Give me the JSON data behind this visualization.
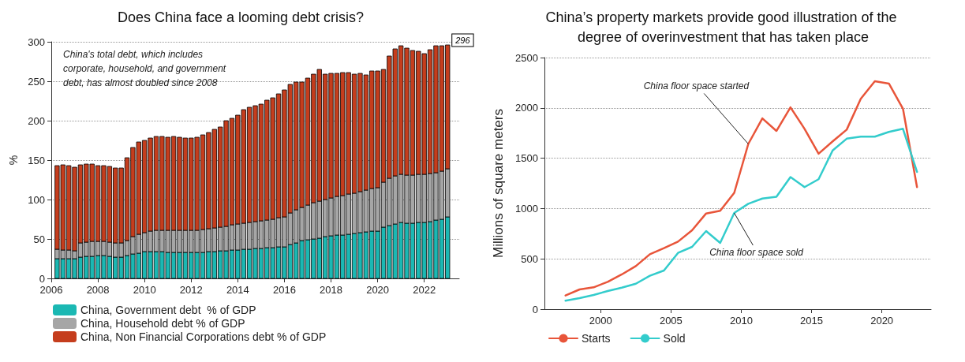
{
  "chart_data": [
    {
      "type": "bar",
      "title": "Does China face a looming debt crisis?",
      "ylabel": "%",
      "stacked": true,
      "legend": "bottom",
      "grid": "y",
      "x": [
        2006.25,
        2006.5,
        2006.75,
        2007,
        2007.25,
        2007.5,
        2007.75,
        2008,
        2008.25,
        2008.5,
        2008.75,
        2009,
        2009.25,
        2009.5,
        2009.75,
        2010,
        2010.25,
        2010.5,
        2010.75,
        2011,
        2011.25,
        2011.5,
        2011.75,
        2012,
        2012.25,
        2012.5,
        2012.75,
        2013,
        2013.25,
        2013.5,
        2013.75,
        2014,
        2014.25,
        2014.5,
        2014.75,
        2015,
        2015.25,
        2015.5,
        2015.75,
        2016,
        2016.25,
        2016.5,
        2016.75,
        2017,
        2017.25,
        2017.5,
        2017.75,
        2018,
        2018.25,
        2018.5,
        2018.75,
        2019,
        2019.25,
        2019.5,
        2019.75,
        2020,
        2020.25,
        2020.5,
        2020.75,
        2021,
        2021.25,
        2021.5,
        2021.75,
        2022,
        2022.25,
        2022.5,
        2022.75,
        2023
      ],
      "xlim": [
        2006,
        2023.5
      ],
      "xticks": [
        2006,
        2008,
        2010,
        2012,
        2014,
        2016,
        2018,
        2020,
        2022
      ],
      "ylim": [
        0,
        300
      ],
      "yticks": [
        0,
        50,
        100,
        150,
        200,
        250,
        300
      ],
      "series": [
        {
          "name": "China, Government debt  % of GDP",
          "color": "#1bb8b3",
          "values": [
            25,
            25,
            25,
            25,
            27,
            28,
            28,
            29,
            29,
            28,
            27,
            27,
            29,
            31,
            32,
            34,
            34,
            34,
            34,
            33,
            33,
            33,
            33,
            33,
            33,
            33,
            34,
            34,
            35,
            35,
            36,
            36,
            37,
            37,
            38,
            38,
            39,
            39,
            40,
            40,
            43,
            45,
            48,
            49,
            50,
            51,
            53,
            54,
            55,
            55,
            56,
            57,
            58,
            59,
            60,
            60,
            65,
            67,
            69,
            71,
            70,
            70,
            71,
            71,
            72,
            74,
            75,
            78
          ]
        },
        {
          "name": "China, Household debt % of GDP",
          "color": "#a6a6a6",
          "values": [
            12,
            11,
            11,
            10,
            18,
            18,
            19,
            18,
            18,
            18,
            18,
            18,
            19,
            22,
            24,
            24,
            26,
            27,
            27,
            28,
            28,
            28,
            28,
            28,
            28,
            29,
            29,
            30,
            30,
            31,
            32,
            33,
            33,
            34,
            34,
            35,
            35,
            36,
            37,
            38,
            40,
            42,
            42,
            44,
            46,
            47,
            47,
            48,
            49,
            50,
            51,
            51,
            52,
            53,
            54,
            55,
            57,
            60,
            61,
            61,
            61,
            61,
            61,
            61,
            61,
            60,
            61,
            61
          ]
        },
        {
          "name": "China, Non Financial Corporations debt % of GDP",
          "color": "#c53d1d",
          "values": [
            106,
            108,
            107,
            106,
            99,
            99,
            98,
            96,
            96,
            96,
            95,
            95,
            105,
            113,
            117,
            117,
            118,
            119,
            119,
            118,
            119,
            118,
            117,
            117,
            118,
            120,
            122,
            125,
            127,
            134,
            135,
            138,
            144,
            146,
            147,
            148,
            152,
            154,
            157,
            161,
            163,
            162,
            159,
            161,
            163,
            167,
            159,
            158,
            156,
            156,
            154,
            151,
            150,
            146,
            149,
            148,
            143,
            155,
            161,
            163,
            161,
            158,
            156,
            153,
            157,
            161,
            159,
            157
          ]
        }
      ],
      "totals": [
        null,
        null,
        null,
        null,
        null,
        null,
        null,
        null,
        null,
        null,
        null,
        null,
        null,
        null,
        null,
        null,
        null,
        null,
        null,
        null,
        null,
        null,
        null,
        null,
        null,
        null,
        null,
        null,
        null,
        null,
        null,
        null,
        null,
        null,
        null,
        null,
        null,
        null,
        null,
        null,
        null,
        null,
        null,
        null,
        null,
        null,
        null,
        null,
        null,
        null,
        null,
        null,
        null,
        null,
        null,
        null,
        null,
        null,
        null,
        null,
        null,
        null,
        null,
        null,
        null,
        null,
        null,
        "296"
      ],
      "annotations": [
        "China's total debt, which includes corporate, household, and government debt, has almost doubled since 2008"
      ]
    },
    {
      "type": "line",
      "title": "China’s property markets provide good illustration of the degree of overinvestment that has taken place",
      "ylabel": "Millions of square meters",
      "legend": "bottom",
      "grid": "y",
      "line_style": "solid",
      "x": [
        1997.5,
        1998.5,
        1999.5,
        2000.5,
        2001.5,
        2002.5,
        2003.5,
        2004.5,
        2005.5,
        2006.5,
        2007.5,
        2008.5,
        2009.5,
        2010.5,
        2011.5,
        2012.5,
        2013.5,
        2014.5,
        2015.5,
        2016.5,
        2017.5,
        2018.5,
        2019.5,
        2020.5,
        2021.5,
        2022.5
      ],
      "xlim": [
        1996,
        2023.5
      ],
      "xticks": [
        2000,
        2005,
        2010,
        2015,
        2020
      ],
      "ylim": [
        0,
        2500
      ],
      "yticks": [
        0,
        500,
        {
          "value": 1000,
          "label": "1000"
        },
        {
          "value": 1500,
          "label": "1500"
        },
        {
          "value": 2000,
          "label": "2000"
        },
        {
          "value": 2500,
          "label": "2500"
        }
      ],
      "series": [
        {
          "name": "Starts",
          "color": "#e8553a",
          "values": [
            136,
            196,
            217,
            272,
            345,
            428,
            546,
            606,
            671,
            784,
            951,
            977,
            1156,
            1642,
            1896,
            1771,
            2005,
            1792,
            1545,
            1667,
            1784,
            2090,
            2265,
            2242,
            1992,
            1213
          ]
        },
        {
          "name": "Sold",
          "color": "#33cccc",
          "values": [
            84,
            110,
            141,
            180,
            214,
            253,
            332,
            384,
            559,
            619,
            776,
            658,
            956,
            1047,
            1099,
            1117,
            1312,
            1213,
            1291,
            1577,
            1694,
            1714,
            1714,
            1761,
            1792,
            1364
          ]
        }
      ],
      "annotations": [
        {
          "text": "China floor space started",
          "x": 2010.5,
          "y": 1642
        },
        {
          "text": "China floor space sold",
          "x": 2009.5,
          "y": 956
        }
      ]
    }
  ]
}
